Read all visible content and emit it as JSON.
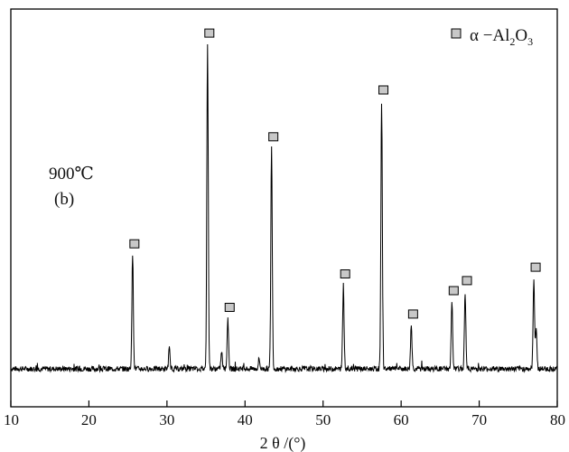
{
  "chart_data": {
    "type": "line",
    "title": "",
    "xlabel": "2 θ /(°)",
    "ylabel": "",
    "xlim": [
      10,
      80
    ],
    "xticks": [
      10,
      20,
      30,
      40,
      50,
      60,
      70,
      80
    ],
    "yaxis_visible": false,
    "grid": false,
    "legend": {
      "placement": "top-right",
      "marker": "gray-square-marker",
      "label_prefix": "α −Al",
      "label_sub1": "2",
      "label_mid": "O",
      "label_sub2": "3"
    },
    "annotations": [
      "900℃",
      "(b)"
    ],
    "series": [
      {
        "type": "xrd-pattern",
        "color": "#000000",
        "baseline": 100,
        "peaks": [
          {
            "x": 25.6,
            "y": 34
          },
          {
            "x": 35.2,
            "y": 97
          },
          {
            "x": 37.8,
            "y": 15
          },
          {
            "x": 43.4,
            "y": 66
          },
          {
            "x": 52.6,
            "y": 25
          },
          {
            "x": 57.5,
            "y": 80
          },
          {
            "x": 61.3,
            "y": 13
          },
          {
            "x": 66.5,
            "y": 20
          },
          {
            "x": 68.2,
            "y": 23
          },
          {
            "x": 77.0,
            "y": 27
          }
        ],
        "minor_peaks": [
          {
            "x": 30.3,
            "y": 6
          },
          {
            "x": 37.0,
            "y": 5
          },
          {
            "x": 41.8,
            "y": 3
          },
          {
            "x": 77.3,
            "y": 12
          }
        ]
      }
    ],
    "peak_markers": [
      {
        "x": 25.6,
        "label": "α-Al2O3"
      },
      {
        "x": 35.2,
        "label": "α-Al2O3"
      },
      {
        "x": 37.8,
        "label": "α-Al2O3"
      },
      {
        "x": 43.4,
        "label": "α-Al2O3"
      },
      {
        "x": 52.6,
        "label": "α-Al2O3"
      },
      {
        "x": 57.5,
        "label": "α-Al2O3"
      },
      {
        "x": 61.3,
        "label": "α-Al2O3"
      },
      {
        "x": 66.5,
        "label": "α-Al2O3"
      },
      {
        "x": 68.2,
        "label": "α-Al2O3"
      },
      {
        "x": 77.0,
        "label": "α-Al2O3"
      }
    ],
    "marker_fill": "#c8c8c8"
  }
}
